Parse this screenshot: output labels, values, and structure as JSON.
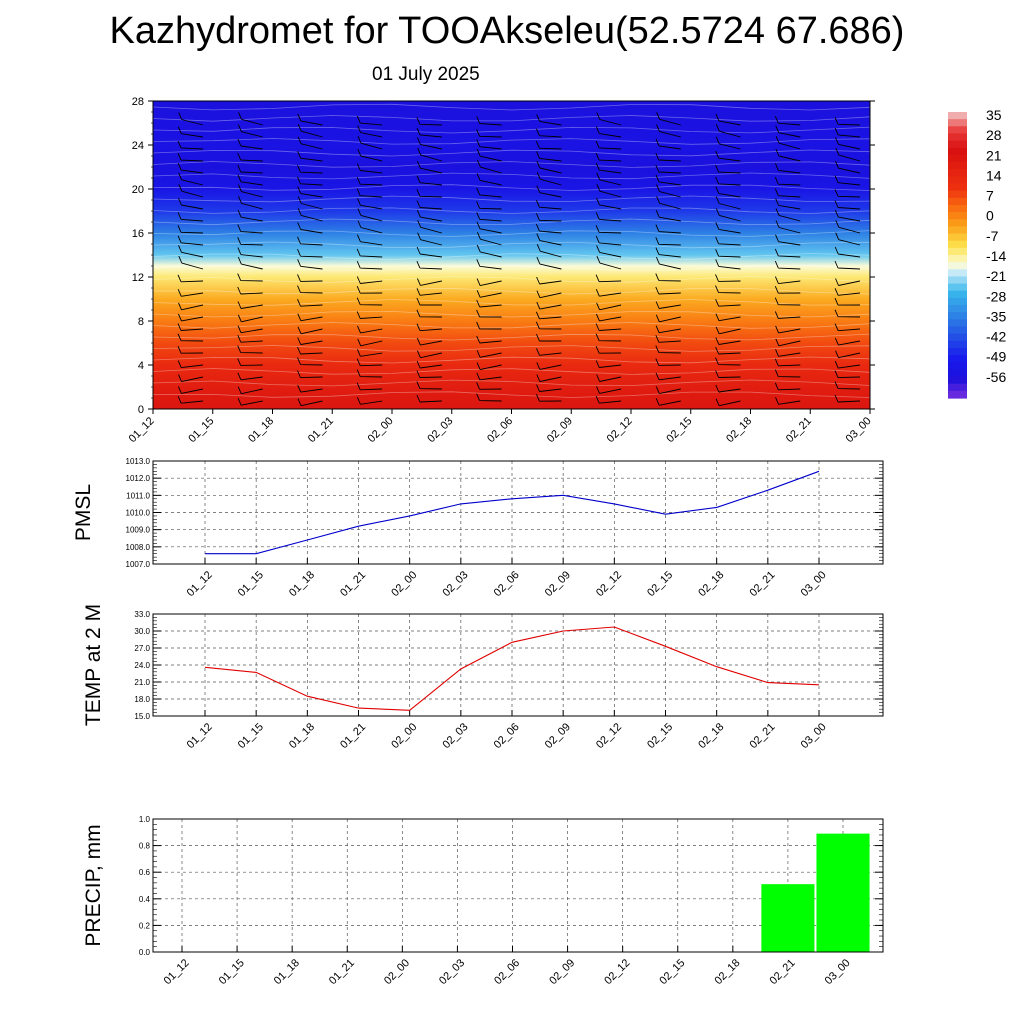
{
  "title": "Kazhydromet for TOOAkseleu(52.5724 67.686)",
  "subtitle": "01 July 2025",
  "time_labels": [
    "01_12",
    "01_15",
    "01_18",
    "01_21",
    "02_00",
    "02_03",
    "02_06",
    "02_09",
    "02_12",
    "02_15",
    "02_18",
    "02_21",
    "03_00"
  ],
  "chart_data": [
    {
      "id": "cross-section",
      "type": "heatmap",
      "x": [
        "01_12",
        "01_15",
        "01_18",
        "01_21",
        "02_00",
        "02_03",
        "02_06",
        "02_09",
        "02_12",
        "02_15",
        "02_18",
        "02_21",
        "03_00"
      ],
      "ylim": [
        0,
        28
      ],
      "yticks": [
        0,
        4,
        8,
        12,
        16,
        20,
        24,
        28
      ],
      "colorbar_labels": [
        "35",
        "28",
        "21",
        "14",
        "7",
        "0",
        "-7",
        "-14",
        "-21",
        "-28",
        "-35",
        "-42",
        "-49",
        "-56"
      ],
      "colorbar_values": [
        35,
        28,
        21,
        14,
        7,
        0,
        -7,
        -14,
        -21,
        -28,
        -35,
        -42,
        -49,
        -56
      ],
      "colormap": [
        {
          "v": 42,
          "c": "#f0c8c8"
        },
        {
          "v": 35,
          "c": "#e83a3a"
        },
        {
          "v": 28,
          "c": "#d81010"
        },
        {
          "v": 14,
          "c": "#ee3010"
        },
        {
          "v": 7,
          "c": "#f86d10"
        },
        {
          "v": 0,
          "c": "#fba21a"
        },
        {
          "v": -7,
          "c": "#fde14a"
        },
        {
          "v": -14,
          "c": "#fbfbd8"
        },
        {
          "v": -17,
          "c": "#c8eaf8"
        },
        {
          "v": -24,
          "c": "#39b8ec"
        },
        {
          "v": -35,
          "c": "#2a74e4"
        },
        {
          "v": -49,
          "c": "#1818ec"
        },
        {
          "v": -56,
          "c": "#1c10dc"
        },
        {
          "v": -63,
          "c": "#7a30e0"
        }
      ],
      "temperature_profile": [
        {
          "height": 0,
          "value": 26
        },
        {
          "height": 2,
          "value": 22
        },
        {
          "height": 4,
          "value": 17
        },
        {
          "height": 6,
          "value": 11
        },
        {
          "height": 8,
          "value": 5
        },
        {
          "height": 10,
          "value": -1
        },
        {
          "height": 12,
          "value": -9
        },
        {
          "height": 13,
          "value": -14
        },
        {
          "height": 14,
          "value": -22
        },
        {
          "height": 16,
          "value": -33
        },
        {
          "height": 18,
          "value": -44
        },
        {
          "height": 20,
          "value": -52
        },
        {
          "height": 22,
          "value": -55
        },
        {
          "height": 24,
          "value": -53
        },
        {
          "height": 26,
          "value": -54
        },
        {
          "height": 28,
          "value": -55
        }
      ]
    },
    {
      "id": "pmsl",
      "type": "line",
      "ylabel": "PMSL",
      "x": [
        "01_12",
        "01_15",
        "01_18",
        "01_21",
        "02_00",
        "02_03",
        "02_06",
        "02_09",
        "02_12",
        "02_15",
        "02_18",
        "02_21",
        "03_00"
      ],
      "values": [
        1007.6,
        1007.6,
        1008.4,
        1009.2,
        1009.8,
        1010.5,
        1010.8,
        1011.0,
        1010.5,
        1009.9,
        1010.3,
        1011.3,
        1012.4
      ],
      "ylim": [
        1007.0,
        1013.0
      ],
      "yticks": [
        "1007.0",
        "1008.0",
        "1009.0",
        "1010.0",
        "1011.0",
        "1012.0",
        "1013.0"
      ],
      "color": "#0000cc"
    },
    {
      "id": "temp2m",
      "type": "line",
      "ylabel": "TEMP at 2 M",
      "x": [
        "01_12",
        "01_15",
        "01_18",
        "01_21",
        "02_00",
        "02_03",
        "02_06",
        "02_09",
        "02_12",
        "02_15",
        "02_18",
        "02_21",
        "03_00"
      ],
      "values": [
        23.6,
        22.7,
        18.5,
        16.4,
        16.0,
        23.3,
        28.0,
        30.0,
        30.7,
        27.3,
        23.7,
        20.9,
        20.5
      ],
      "ylim": [
        15.0,
        33.0
      ],
      "yticks": [
        "15.0",
        "18.0",
        "21.0",
        "24.0",
        "27.0",
        "30.0",
        "33.0"
      ],
      "color": "#e00000"
    },
    {
      "id": "precip",
      "type": "bar",
      "ylabel": "PRECIP, mm",
      "categories": [
        "01_12",
        "01_15",
        "01_18",
        "01_21",
        "02_00",
        "02_03",
        "02_06",
        "02_09",
        "02_12",
        "02_15",
        "02_18",
        "02_21",
        "03_00"
      ],
      "values": [
        0,
        0,
        0,
        0,
        0,
        0,
        0,
        0,
        0,
        0,
        0,
        0.51,
        0.89
      ],
      "ylim": [
        0.0,
        1.0
      ],
      "yticks": [
        "0.0",
        "0.2",
        "0.4",
        "0.6",
        "0.8",
        "1.0"
      ],
      "color": "#00ff00"
    }
  ]
}
